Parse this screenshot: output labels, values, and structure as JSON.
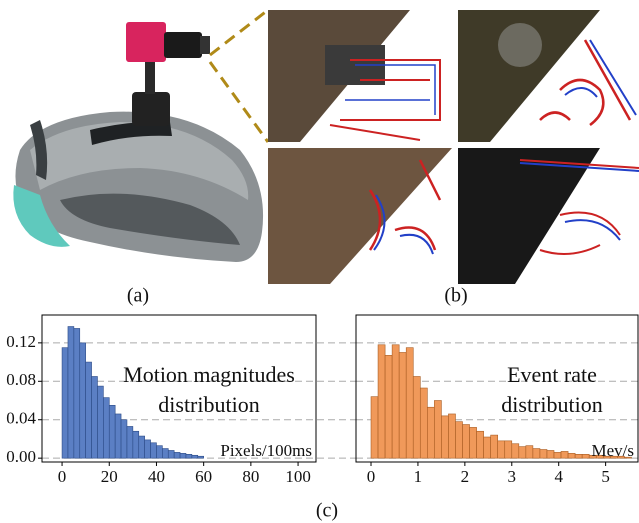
{
  "panels": [
    "(a)",
    "(b)",
    "(c)"
  ],
  "chart_data": [
    {
      "type": "histogram",
      "annotation": [
        "Motion magnitudes",
        "distribution"
      ],
      "xlabel": "Pixels/100ms",
      "color": "#5b7fc4",
      "edgecolor": "#2b4a86",
      "bins": [
        0,
        2.5,
        5,
        7.5,
        10,
        12.5,
        15,
        17.5,
        20,
        22.5,
        25,
        27.5,
        30,
        32.5,
        35,
        37.5,
        40,
        42.5,
        45,
        47.5,
        50,
        52.5,
        55,
        57.5,
        60
      ],
      "values": [
        0.115,
        0.137,
        0.135,
        0.12,
        0.1,
        0.085,
        0.075,
        0.063,
        0.055,
        0.046,
        0.04,
        0.033,
        0.028,
        0.023,
        0.019,
        0.016,
        0.013,
        0.01,
        0.008,
        0.006,
        0.005,
        0.004,
        0.003,
        0.002
      ],
      "xlim": [
        -8.5,
        107.6
      ],
      "ylim": [
        -0.004,
        0.149
      ],
      "xticks": [
        0,
        20,
        40,
        60,
        80,
        100
      ],
      "yticks": [
        {
          "value": 0,
          "label": "0.00"
        },
        0.04,
        0.08,
        0.12
      ],
      "grid": true
    },
    {
      "type": "histogram",
      "annotation": [
        "Event rate",
        "distribution"
      ],
      "xlabel": "Mev/s",
      "color": "#f0995a",
      "edgecolor": "#a85c22",
      "bins": [
        0,
        0.15,
        0.3,
        0.45,
        0.6,
        0.75,
        0.9,
        1.05,
        1.2,
        1.35,
        1.5,
        1.65,
        1.8,
        1.95,
        2.1,
        2.25,
        2.4,
        2.55,
        2.7,
        2.85,
        3,
        3.15,
        3.3,
        3.45,
        3.6,
        3.75,
        3.9,
        4.05,
        4.2,
        4.35,
        4.5,
        4.65,
        4.8,
        4.95,
        5.1,
        5.25,
        5.4,
        5.55
      ],
      "values": [
        0.064,
        0.118,
        0.107,
        0.118,
        0.11,
        0.115,
        0.085,
        0.073,
        0.053,
        0.06,
        0.044,
        0.046,
        0.038,
        0.035,
        0.032,
        0.028,
        0.022,
        0.024,
        0.018,
        0.018,
        0.015,
        0.012,
        0.013,
        0.01,
        0.009,
        0.008,
        0.006,
        0.007,
        0.005,
        0.004,
        0.004,
        0.003,
        0.003,
        0.002,
        0.002,
        0.002,
        0.001
      ],
      "xlim": [
        -0.32,
        5.69
      ],
      "ylim": [
        -0.004,
        0.149
      ],
      "xticks": [
        0,
        1,
        2,
        3,
        4,
        5
      ],
      "grid": true
    }
  ]
}
